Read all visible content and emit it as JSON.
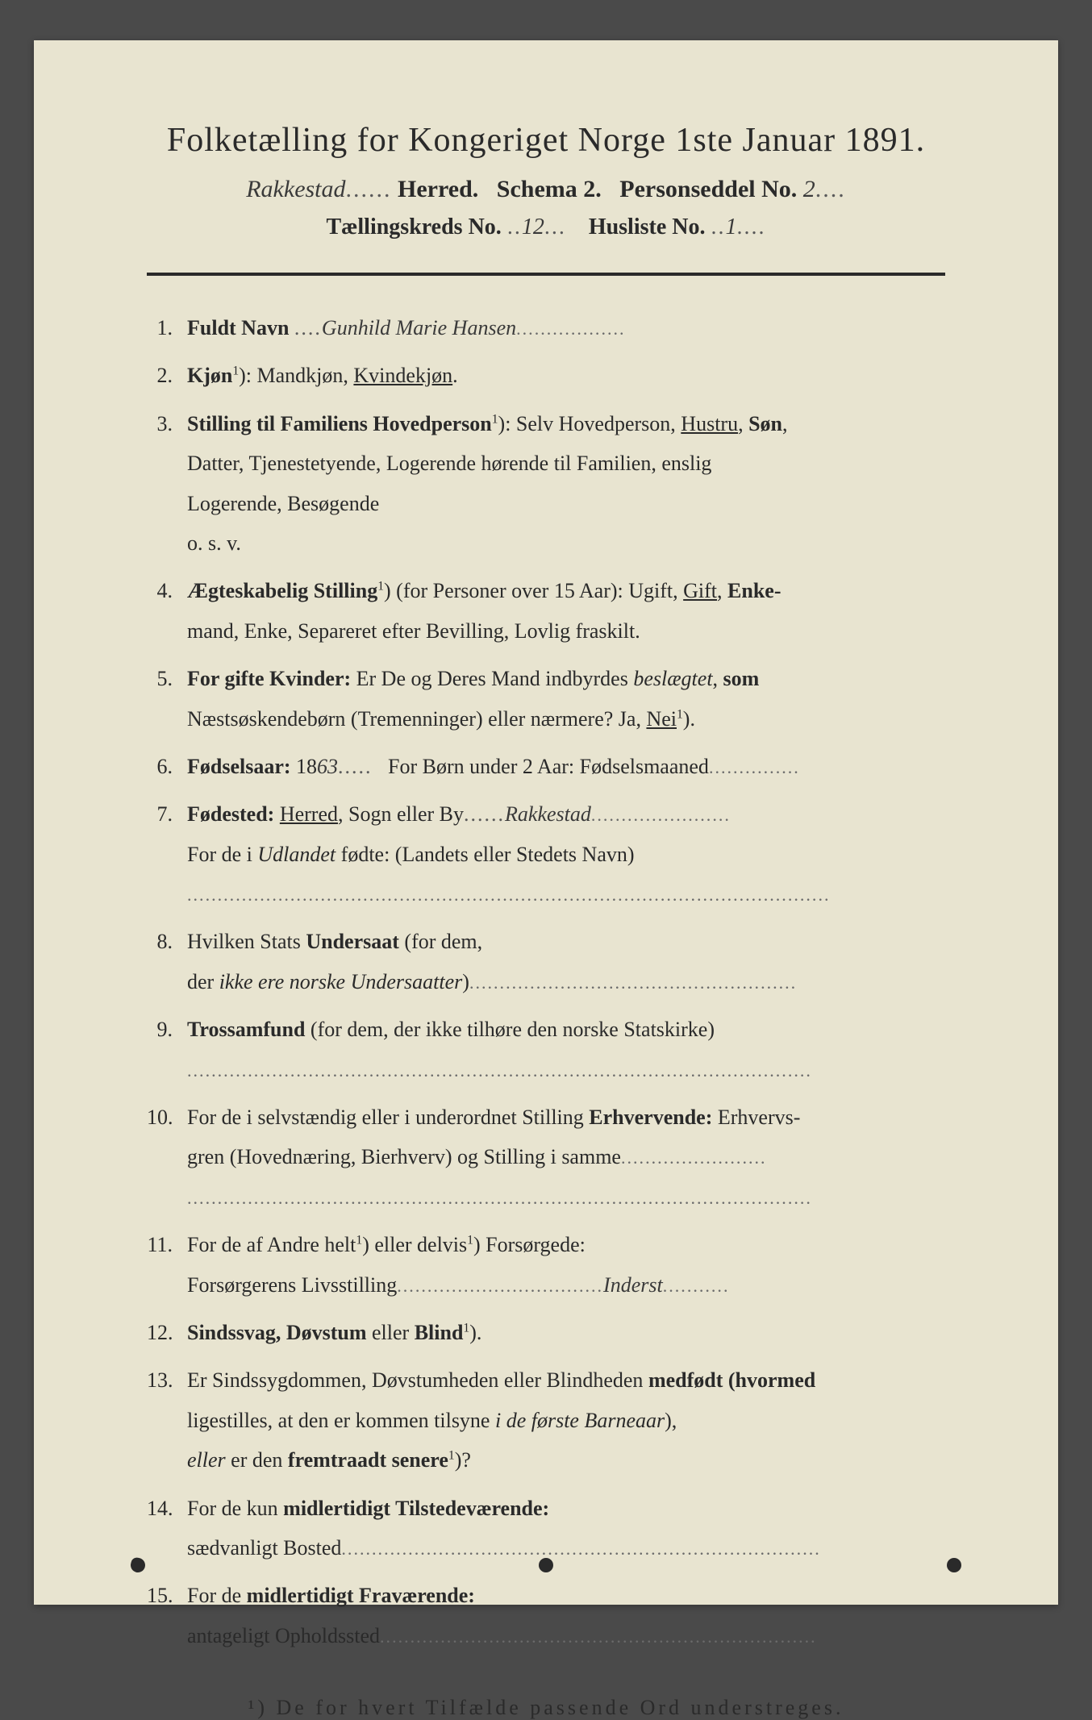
{
  "colors": {
    "page_bg": "#e8e4d0",
    "outer_bg": "#4a4a4a",
    "text": "#2a2a2a",
    "script": "#3a3a3a",
    "dots": "#6a6a6a"
  },
  "header": {
    "title": "Folketælling for Kongeriget Norge 1ste Januar 1891.",
    "herred_written": "Rakkestad",
    "herred_label": "Herred.",
    "schema_label": "Schema 2.",
    "personseddel_label": "Personseddel No.",
    "personseddel_no": "2",
    "kreds_label": "Tællingskreds No.",
    "kreds_no": "12",
    "husliste_label": "Husliste No.",
    "husliste_no": "1"
  },
  "entries": {
    "1": {
      "label": "Fuldt Navn",
      "value": "Gunhild Marie Hansen"
    },
    "2": {
      "label": "Kjøn",
      "options": "Mandkjøn, Kvindekjøn.",
      "selected": "Kvindekjøn"
    },
    "3": {
      "label": "Stilling til Familiens Hovedperson",
      "line1": "Selv Hovedperson, Hustru, Søn,",
      "line2": "Datter, Tjenestetyende, Logerende hørende til Familien, enslig",
      "line3": "Logerende, Besøgende",
      "line4": "o. s. v.",
      "selected": "Hustru"
    },
    "4": {
      "label": "Ægteskabelig Stilling",
      "paren": "(for Personer over 15 Aar):",
      "line1": "Ugift, Gift, Enke-",
      "line2": "mand, Enke, Separeret efter Bevilling, Lovlig fraskilt.",
      "selected": "Gift"
    },
    "5": {
      "label": "For gifte Kvinder:",
      "line1": "Er De og Deres Mand indbyrdes beslægtet, som",
      "line2": "Næstsøskendebørn (Tremenninger) eller nærmere? Ja, Nei",
      "selected": "Nei"
    },
    "6": {
      "label": "Fødselsaar:",
      "year_prefix": "18",
      "year_suffix": "63",
      "born_label": "For Børn under 2 Aar: Fødselsmaaned"
    },
    "7": {
      "label": "Fødested:",
      "options": "Herred, Sogn eller By",
      "selected": "Herred",
      "value": "Rakkestad",
      "line2": "For de i Udlandet fødte: (Landets eller Stedets Navn)"
    },
    "8": {
      "line1": "Hvilken Stats Undersaat (for dem,",
      "line2": "der ikke ere norske Undersaatter)"
    },
    "9": {
      "label": "Trossamfund",
      "text": "(for dem, der ikke tilhøre den norske Statskirke)"
    },
    "10": {
      "line1": "For de i selvstændig eller i underordnet Stilling Erhvervende: Erhvervs-",
      "line2": "gren (Hovednæring, Bierhverv) og Stilling i samme"
    },
    "11": {
      "line1": "For de af Andre helt",
      "line1b": "eller delvis",
      "line1c": "Forsørgede:",
      "line2": "Forsørgerens Livsstilling",
      "value": "Inderst"
    },
    "12": {
      "text": "Sindssvag, Døvstum eller Blind"
    },
    "13": {
      "line1": "Er Sindssygdommen, Døvstumheden eller Blindheden medfødt (hvormed",
      "line2": "ligestilles, at den er kommen tilsyne i de første Barneaar),",
      "line3": "eller er den fremtraadt senere"
    },
    "14": {
      "line1": "For de kun midlertidigt Tilstedeværende:",
      "line2": "sædvanligt Bosted"
    },
    "15": {
      "line1": "For de midlertidigt Fraværende:",
      "line2": "antageligt Opholdssted"
    }
  },
  "footnote": {
    "marker": "¹)",
    "text": "De for hvert Tilfælde passende Ord understreges."
  }
}
